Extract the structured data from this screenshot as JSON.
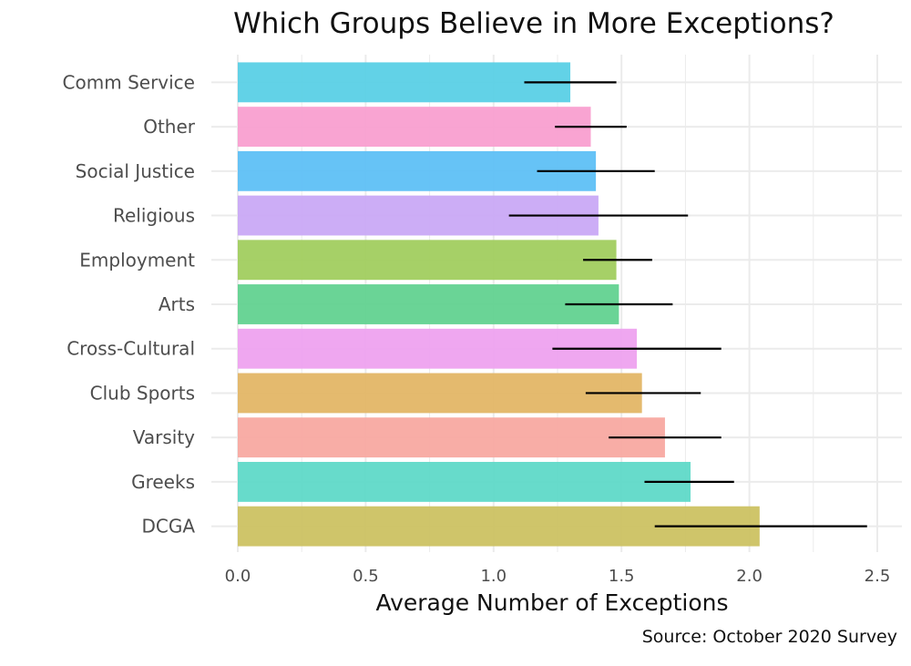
{
  "chart_data": {
    "type": "bar",
    "orientation": "horizontal",
    "title": "Which Groups Believe in More Exceptions?",
    "xlabel": "Average Number of Exceptions",
    "ylabel": "",
    "caption": "Source: October 2020 Survey",
    "xlim": [
      0,
      2.5
    ],
    "xticks": [
      "0.0",
      "0.5",
      "1.0",
      "1.5",
      "2.0",
      "2.5"
    ],
    "grid": true,
    "categories": [
      "Comm Service",
      "Other",
      "Social Justice",
      "Religious",
      "Employment",
      "Arts",
      "Cross-Cultural",
      "Club Sports",
      "Varsity",
      "Greeks",
      "DCGA"
    ],
    "values": [
      1.3,
      1.38,
      1.4,
      1.41,
      1.48,
      1.49,
      1.56,
      1.58,
      1.67,
      1.77,
      2.04
    ],
    "error_low": [
      1.12,
      1.24,
      1.17,
      1.06,
      1.35,
      1.28,
      1.23,
      1.36,
      1.45,
      1.59,
      1.63
    ],
    "error_high": [
      1.48,
      1.52,
      1.63,
      1.76,
      1.62,
      1.7,
      1.89,
      1.81,
      1.89,
      1.94,
      2.46
    ],
    "colors": [
      "#5ad0e6",
      "#f99fd0",
      "#5ec0f6",
      "#c9a9f6",
      "#a1cd5f",
      "#62d290",
      "#eea2ef",
      "#e3b666",
      "#f8a9a1",
      "#5fd9c8",
      "#ccc262"
    ]
  }
}
